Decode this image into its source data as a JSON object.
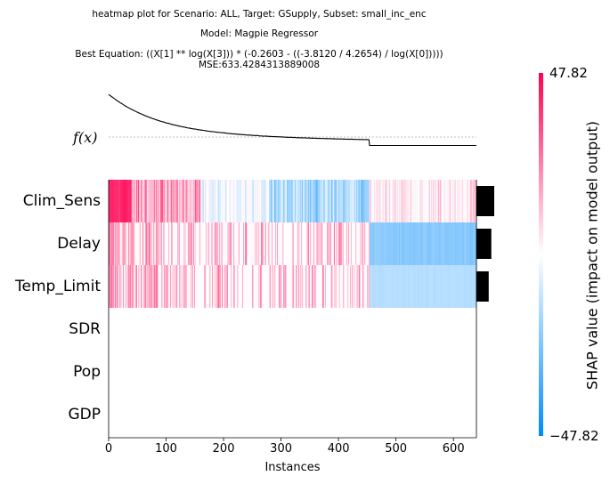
{
  "title": {
    "line1": "heatmap plot for Scenario: ALL, Target: GSupply, Subset: small_inc_enc",
    "line2": "Model: Magpie Regressor",
    "line3": "Best Equation: ((X[1] ** log(X[3])) * (-0.2603 - ((-3.8120 / 4.2654) / log(X[0]))))",
    "line4": "MSE:633.4284313889008"
  },
  "chart_data": {
    "type": "heatmap",
    "xlabel": "Instances",
    "x_ticks": [
      0,
      100,
      200,
      300,
      400,
      500,
      600
    ],
    "xlim": [
      0,
      640
    ],
    "n_instances": 640,
    "features": [
      "Clim_Sens",
      "Delay",
      "Temp_Limit",
      "SDR",
      "Pop",
      "GDP"
    ],
    "feature_importance": [
      47.82,
      40,
      33,
      0,
      0,
      0
    ],
    "fx_label": "f(x)",
    "colorbar": {
      "label": "SHAP value (impact on model output)",
      "max_label": "47.82",
      "min_label": "−47.82",
      "vmin": -47.82,
      "vmax": 47.82,
      "colors": [
        "#008bfb",
        "#ffffff",
        "#ff0052"
      ]
    },
    "split_instance": 454
  }
}
